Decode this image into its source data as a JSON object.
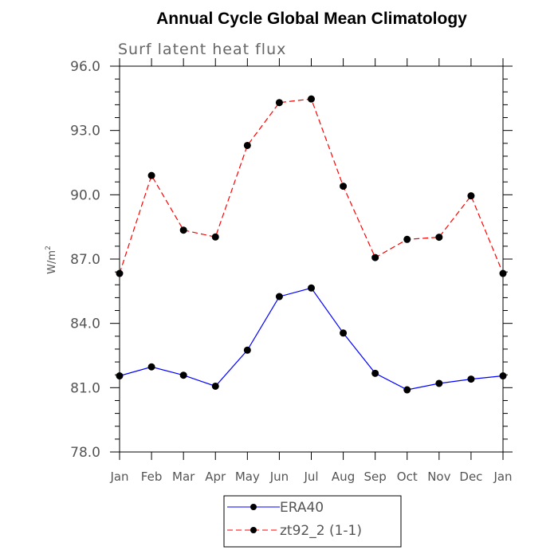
{
  "chart_data": {
    "type": "line",
    "title": "Annual Cycle Global Mean Climatology",
    "subtitle": "Surf latent heat flux",
    "ylabel_base": "W/m",
    "ylabel_sup": "2",
    "xlabel": "",
    "categories": [
      "Jan",
      "Feb",
      "Mar",
      "Apr",
      "May",
      "Jun",
      "Jul",
      "Aug",
      "Sep",
      "Oct",
      "Nov",
      "Dec",
      "Jan"
    ],
    "ylim": [
      78.0,
      96.0
    ],
    "yticks": [
      "78.0",
      "81.0",
      "84.0",
      "87.0",
      "90.0",
      "93.0",
      "96.0"
    ],
    "grid": false,
    "legend_position": "bottom-center",
    "series": [
      {
        "name": "ERA40",
        "color": "#0000ff",
        "dash": "solid",
        "values": [
          81.55,
          81.97,
          81.58,
          81.07,
          82.75,
          85.25,
          85.65,
          83.55,
          81.67,
          80.9,
          81.2,
          81.4,
          81.55
        ]
      },
      {
        "name": "zt92_2 (1-1)",
        "color": "#ff0000",
        "dash": "dashed",
        "values": [
          86.33,
          90.9,
          88.35,
          88.03,
          92.3,
          94.3,
          94.47,
          90.4,
          87.07,
          87.92,
          88.02,
          89.95,
          86.33
        ]
      }
    ]
  }
}
